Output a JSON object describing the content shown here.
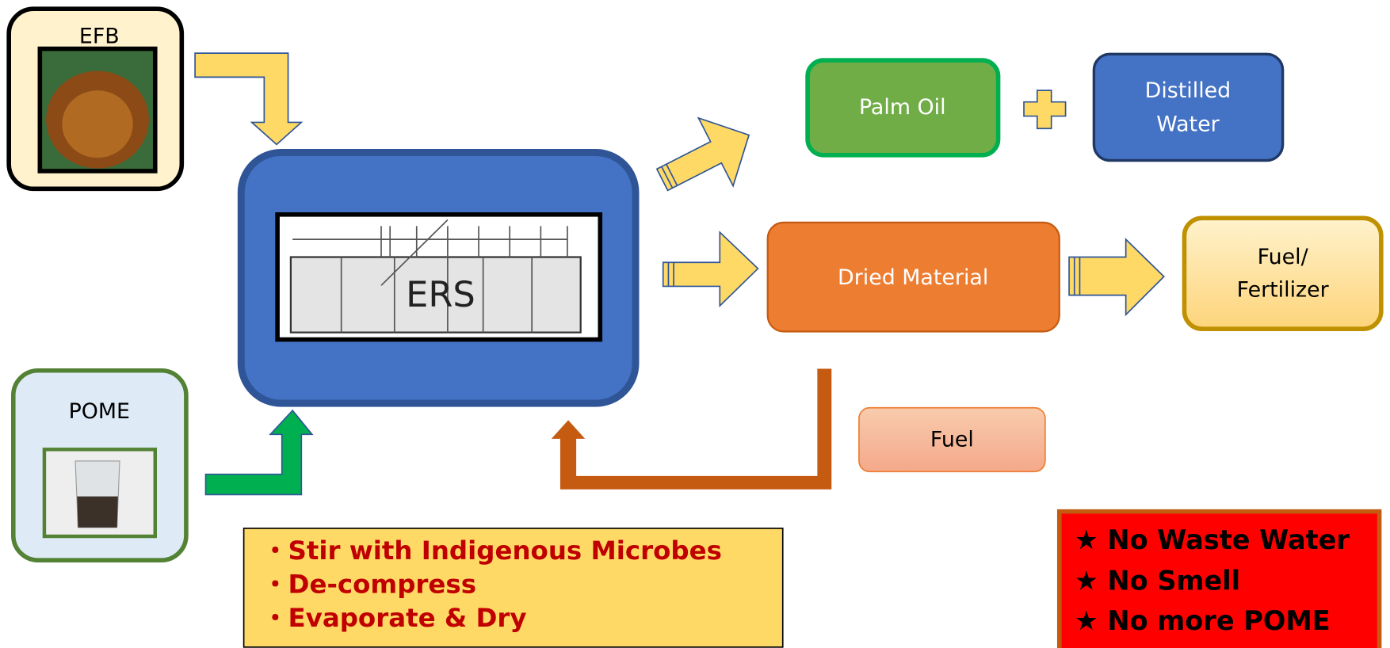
{
  "inputs": [
    {
      "label": "EFB"
    },
    {
      "label": "POME"
    }
  ],
  "processor": {
    "label": "ERS"
  },
  "outputs": {
    "palm_oil": {
      "label": "Palm Oil"
    },
    "distilled_water": {
      "lines": [
        "Distilled",
        "Water"
      ]
    },
    "dried_material": {
      "label": "Dried Material"
    },
    "fuel_fertilizer": {
      "lines": [
        "Fuel/",
        "Fertilizer"
      ]
    },
    "fuel": {
      "label": "Fuel"
    }
  },
  "process_steps": [
    "・Stir with Indigenous Microbes",
    "・De-compress",
    "・Evaporate & Dry"
  ],
  "benefits": [
    "★ No Waste Water",
    "★ No Smell",
    "★ No more POME"
  ]
}
